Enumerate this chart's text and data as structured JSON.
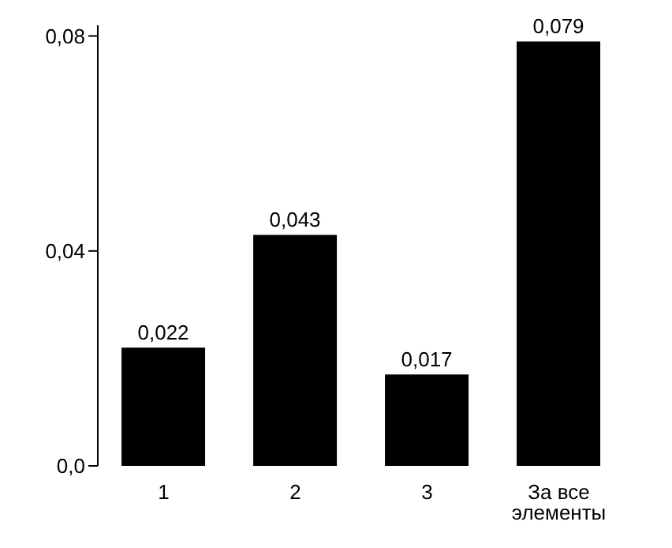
{
  "chart_data": {
    "type": "bar",
    "categories": [
      "1",
      "2",
      "3",
      "За все элементы"
    ],
    "values": [
      0.022,
      0.043,
      0.017,
      0.079
    ],
    "color": "#000000",
    "value_labels": [
      "0,022",
      "0,043",
      "0,017",
      "0,079"
    ],
    "ylim": [
      0,
      0.082
    ],
    "yticks": [
      {
        "value": 0,
        "label": "0,0"
      },
      {
        "value": 0.04,
        "label": "0,04"
      },
      {
        "value": 0.08,
        "label": "0,08"
      }
    ],
    "grid": false
  }
}
